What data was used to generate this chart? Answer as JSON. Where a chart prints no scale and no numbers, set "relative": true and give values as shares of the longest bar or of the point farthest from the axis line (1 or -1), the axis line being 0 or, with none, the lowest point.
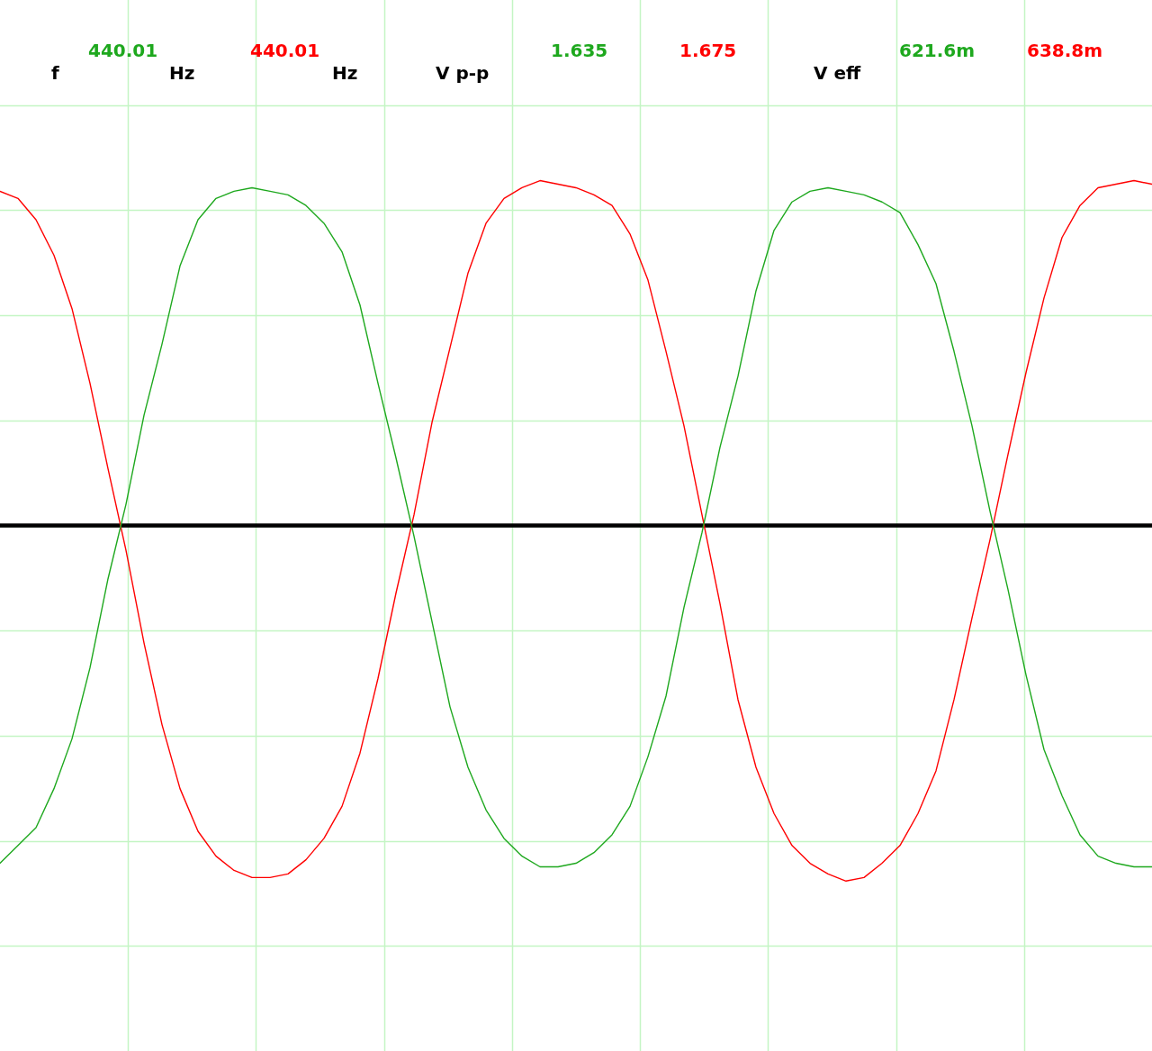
{
  "chart_data": {
    "type": "line",
    "relative": true,
    "grid": true,
    "categories": [
      null,
      null,
      null,
      null,
      null,
      null,
      null,
      null,
      null,
      null,
      null,
      null,
      null,
      null,
      null,
      null,
      null,
      null,
      null,
      null,
      null,
      null,
      null,
      null,
      null,
      null,
      null,
      null,
      null,
      null,
      null,
      null,
      null,
      null,
      null,
      null,
      null,
      null,
      null,
      null,
      null,
      null,
      null,
      null,
      null,
      null,
      null,
      null,
      null,
      null,
      null,
      null,
      null,
      null,
      null,
      null,
      null,
      null,
      null,
      null,
      null,
      null,
      null,
      null,
      null
    ],
    "series": [
      {
        "color": "#1ea81e",
        "values": [
          -0.95,
          -0.9,
          -0.85,
          -0.74,
          -0.6,
          -0.4,
          -0.15,
          0.06,
          0.31,
          0.51,
          0.73,
          0.86,
          0.92,
          0.94,
          0.95,
          0.94,
          0.93,
          0.9,
          0.85,
          0.77,
          0.62,
          0.4,
          0.19,
          -0.03,
          -0.27,
          -0.51,
          -0.68,
          -0.8,
          -0.88,
          -0.93,
          -0.96,
          -0.96,
          -0.95,
          -0.92,
          -0.87,
          -0.79,
          -0.65,
          -0.48,
          -0.23,
          -0.02,
          0.22,
          0.42,
          0.66,
          0.83,
          0.91,
          0.94,
          0.95,
          0.94,
          0.93,
          0.91,
          0.88,
          0.79,
          0.68,
          0.49,
          0.28,
          0.04,
          -0.18,
          -0.42,
          -0.63,
          -0.76,
          -0.87,
          -0.93,
          -0.95,
          -0.96,
          -0.96
        ]
      },
      {
        "color": "#ff0000",
        "values": [
          0.94,
          0.92,
          0.86,
          0.76,
          0.61,
          0.4,
          0.16,
          -0.07,
          -0.33,
          -0.56,
          -0.74,
          -0.86,
          -0.93,
          -0.97,
          -0.99,
          -0.99,
          -0.98,
          -0.94,
          -0.88,
          -0.79,
          -0.64,
          -0.43,
          -0.19,
          0.03,
          0.29,
          0.5,
          0.71,
          0.85,
          0.92,
          0.95,
          0.97,
          0.96,
          0.95,
          0.93,
          0.9,
          0.82,
          0.69,
          0.49,
          0.28,
          0.03,
          -0.22,
          -0.49,
          -0.68,
          -0.81,
          -0.9,
          -0.95,
          -0.98,
          -1.0,
          -0.99,
          -0.95,
          -0.9,
          -0.81,
          -0.69,
          -0.49,
          -0.26,
          -0.04,
          0.2,
          0.43,
          0.64,
          0.81,
          0.9,
          0.95,
          0.96,
          0.97,
          0.96
        ]
      }
    ],
    "annotations": [
      "f",
      "440.01",
      "Hz",
      "440.01",
      "Hz",
      "V p-p",
      "1.635",
      "1.675",
      "V eff",
      "621.6m",
      "638.8m"
    ]
  }
}
